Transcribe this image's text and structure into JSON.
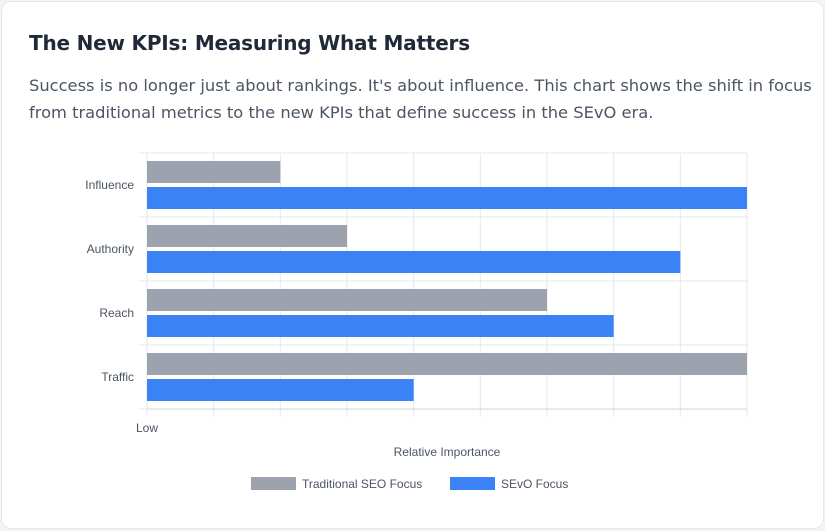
{
  "header": {
    "title": "The New KPIs: Measuring What Matters",
    "description": "Success is no longer just about rankings. It's about influence. This chart shows the shift in focus from traditional metrics to the new KPIs that define success in the SEvO era."
  },
  "chart_data": {
    "type": "bar",
    "orientation": "horizontal",
    "categories": [
      "Influence",
      "Authority",
      "Reach",
      "Traffic"
    ],
    "series": [
      {
        "name": "Traditional SEO Focus",
        "color": "#9ca3af",
        "values": [
          3,
          4,
          7,
          10
        ]
      },
      {
        "name": "SEvO Focus",
        "color": "#3b82f6",
        "values": [
          10,
          9,
          8,
          5
        ]
      }
    ],
    "xlabel": "Relative Importance",
    "xlim": [
      1,
      10
    ],
    "x_tick_labels": [
      "Low"
    ],
    "grid": true,
    "legend": "bottom"
  }
}
